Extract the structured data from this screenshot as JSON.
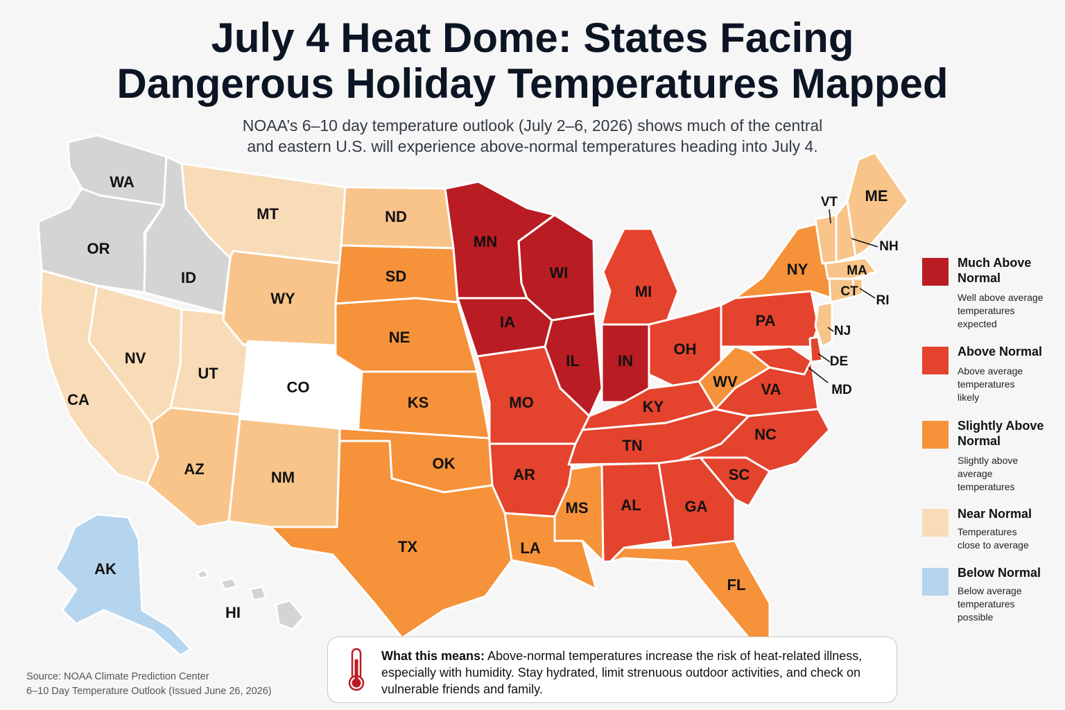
{
  "header": {
    "title_line1": "July 4 Heat Dome: States Facing",
    "title_line2": "Dangerous Holiday Temperatures Mapped",
    "subtitle_line1": "NOAA’s 6–10 day temperature outlook (July 2–6, 2026) shows much of the central",
    "subtitle_line2": "and eastern U.S. will experience above-normal temperatures heading into July 4."
  },
  "categories": {
    "much_above": {
      "label_line1": "Much Above",
      "label_line2": "Normal",
      "desc": [
        "Well above average",
        "temperatures",
        "expected"
      ],
      "color": "#b91c22"
    },
    "above": {
      "label_line1": "Above Normal",
      "label_line2": "",
      "desc": [
        "Above average",
        "temperatures",
        "likely"
      ],
      "color": "#e4432d"
    },
    "slightly_above": {
      "label_line1": "Slightly Above",
      "label_line2": "Normal",
      "desc": [
        "Slightly above",
        "average",
        "temperatures"
      ],
      "color": "#f5923a"
    },
    "near": {
      "label_line1": "Near Normal",
      "label_line2": "",
      "desc": [
        "Temperatures",
        "close to average"
      ],
      "color": "#f8dcb8"
    },
    "below": {
      "label_line1": "Below Normal",
      "label_line2": "",
      "desc": [
        "Below average",
        "temperatures",
        "possible"
      ],
      "color": "#b5d5ef"
    },
    "no_data_color": "#d4d4d4",
    "neutral_color": "#ffffff",
    "light_orange": "#f8c48a"
  },
  "states": [
    {
      "abbr": "WA",
      "category": "none"
    },
    {
      "abbr": "OR",
      "category": "none"
    },
    {
      "abbr": "ID",
      "category": "none"
    },
    {
      "abbr": "CA",
      "category": "near"
    },
    {
      "abbr": "NV",
      "category": "near"
    },
    {
      "abbr": "MT",
      "category": "near"
    },
    {
      "abbr": "UT",
      "category": "near"
    },
    {
      "abbr": "WY",
      "category": "light"
    },
    {
      "abbr": "AZ",
      "category": "light"
    },
    {
      "abbr": "NM",
      "category": "light"
    },
    {
      "abbr": "CO",
      "category": "neutral"
    },
    {
      "abbr": "ND",
      "category": "light"
    },
    {
      "abbr": "SD",
      "category": "slightly_above"
    },
    {
      "abbr": "NE",
      "category": "slightly_above"
    },
    {
      "abbr": "KS",
      "category": "slightly_above"
    },
    {
      "abbr": "OK",
      "category": "slightly_above"
    },
    {
      "abbr": "TX",
      "category": "slightly_above"
    },
    {
      "abbr": "LA",
      "category": "slightly_above"
    },
    {
      "abbr": "MS",
      "category": "slightly_above"
    },
    {
      "abbr": "FL",
      "category": "slightly_above"
    },
    {
      "abbr": "NY",
      "category": "slightly_above"
    },
    {
      "abbr": "WV",
      "category": "slightly_above"
    },
    {
      "abbr": "MN",
      "category": "much_above"
    },
    {
      "abbr": "WI",
      "category": "much_above"
    },
    {
      "abbr": "IA",
      "category": "much_above"
    },
    {
      "abbr": "IL",
      "category": "much_above"
    },
    {
      "abbr": "IN",
      "category": "much_above"
    },
    {
      "abbr": "MI",
      "category": "above"
    },
    {
      "abbr": "MO",
      "category": "above"
    },
    {
      "abbr": "AR",
      "category": "above"
    },
    {
      "abbr": "KY",
      "category": "above"
    },
    {
      "abbr": "TN",
      "category": "above"
    },
    {
      "abbr": "OH",
      "category": "above"
    },
    {
      "abbr": "PA",
      "category": "above"
    },
    {
      "abbr": "VA",
      "category": "above"
    },
    {
      "abbr": "NC",
      "category": "above"
    },
    {
      "abbr": "SC",
      "category": "above"
    },
    {
      "abbr": "GA",
      "category": "above"
    },
    {
      "abbr": "AL",
      "category": "above"
    },
    {
      "abbr": "MD",
      "category": "above"
    },
    {
      "abbr": "DE",
      "category": "above"
    },
    {
      "abbr": "NJ",
      "category": "light"
    },
    {
      "abbr": "ME",
      "category": "light"
    },
    {
      "abbr": "VT",
      "category": "light"
    },
    {
      "abbr": "NH",
      "category": "light"
    },
    {
      "abbr": "MA",
      "category": "light"
    },
    {
      "abbr": "CT",
      "category": "light"
    },
    {
      "abbr": "RI",
      "category": "light"
    },
    {
      "abbr": "AK",
      "category": "below"
    },
    {
      "abbr": "HI",
      "category": "none"
    }
  ],
  "info_box": {
    "bold": "What this means:",
    "text": " Above-normal temperatures increase the risk of heat-related illness, especially with humidity. Stay hydrated, limit strenuous outdoor activities, and check on vulnerable friends and family.",
    "icon": "thermometer-icon"
  },
  "source": {
    "line1": "Source: NOAA Climate Prediction Center",
    "line2": "6–10 Day Temperature Outlook (Issued June 26, 2026)"
  }
}
